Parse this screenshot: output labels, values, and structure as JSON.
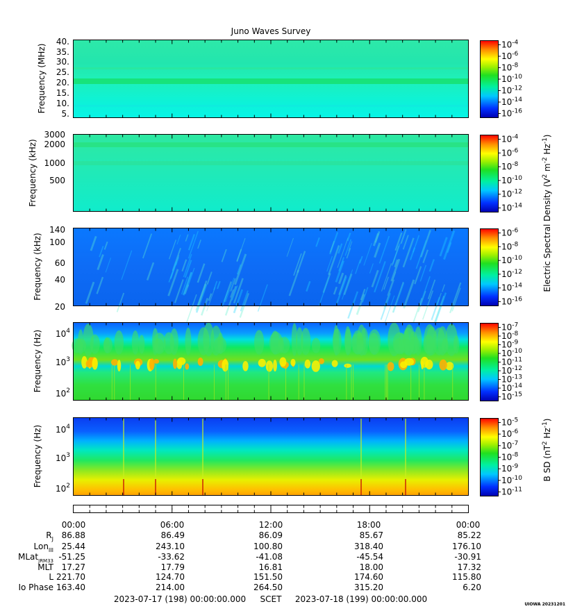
{
  "chart_data": {
    "type": "heatmap",
    "title": "Juno Waves Survey",
    "panels": [
      {
        "id": "radio-mhz",
        "ylabel": "Frequency (MHz)",
        "y_scale": "linear",
        "y_ticks": [
          "40.",
          "35.",
          "30.",
          "25.",
          "20.",
          "15.",
          "10.",
          "5."
        ],
        "colorbar_ticks": [
          "10^-4",
          "10^-6",
          "10^-8",
          "10^-10",
          "10^-12",
          "10^-14",
          "10^-16"
        ]
      },
      {
        "id": "radio-khz",
        "ylabel": "Frequency (kHz)",
        "y_scale": "log",
        "y_ticks": [
          "3000",
          "2000",
          "1000",
          "500"
        ],
        "colorbar_ticks": [
          "10^-4",
          "10^-6",
          "10^-8",
          "10^-10",
          "10^-12",
          "10^-14"
        ]
      },
      {
        "id": "lfr-khz",
        "ylabel": "Frequency (kHz)",
        "y_scale": "log",
        "y_ticks": [
          "140",
          "100",
          "60",
          "40",
          "20"
        ],
        "colorbar_ticks": [
          "10^-6",
          "10^-8",
          "10^-10",
          "10^-12",
          "10^-14",
          "10^-16"
        ]
      },
      {
        "id": "e-hz",
        "ylabel": "Frequency (Hz)",
        "y_scale": "log",
        "y_ticks": [
          "10^4",
          "10^3",
          "10^2"
        ],
        "colorbar_ticks": [
          "10^-7",
          "10^-8",
          "10^-9",
          "10^-10",
          "10^-11",
          "10^-12",
          "10^-13",
          "10^-14",
          "10^-15"
        ]
      },
      {
        "id": "b-hz",
        "ylabel": "Frequency (Hz)",
        "y_scale": "log",
        "y_ticks": [
          "10^4",
          "10^3",
          "10^2"
        ],
        "colorbar_ticks": [
          "10^-5",
          "10^-6",
          "10^-7",
          "10^-8",
          "10^-9",
          "10^-10",
          "10^-11"
        ]
      }
    ],
    "colorbar_labels": {
      "electric": "Electric Spectral Density (V^2 m^-2 Hz^-1)",
      "magnetic": "B SD (nT^2 Hz^-1)"
    },
    "x_ticks": [
      "00:00",
      "06:00",
      "12:00",
      "18:00",
      "00:00"
    ],
    "ephemeris": [
      {
        "label": "R_J",
        "values": [
          "86.88",
          "86.49",
          "86.09",
          "85.67",
          "85.22"
        ]
      },
      {
        "label": "Lon_III",
        "values": [
          "25.44",
          "243.10",
          "100.80",
          "318.40",
          "176.10"
        ]
      },
      {
        "label": "MLat_JRM33",
        "values": [
          "-51.25",
          "-33.62",
          "-41.08",
          "-45.54",
          "-30.91"
        ]
      },
      {
        "label": "MLT",
        "values": [
          "17.27",
          "17.79",
          "16.81",
          "18.00",
          "17.32"
        ]
      },
      {
        "label": "L",
        "values": [
          "221.70",
          "124.70",
          "151.50",
          "174.60",
          "115.80"
        ]
      },
      {
        "label": "Io Phase",
        "values": [
          "163.40",
          "214.00",
          "264.50",
          "315.20",
          "6.20"
        ]
      }
    ],
    "time_range_start": "2023-07-17 (198) 00:00:00.000",
    "time_range_label": "SCET",
    "time_range_end": "2023-07-18 (199) 00:00:00.000",
    "credit": "UIOWA 20231201"
  }
}
